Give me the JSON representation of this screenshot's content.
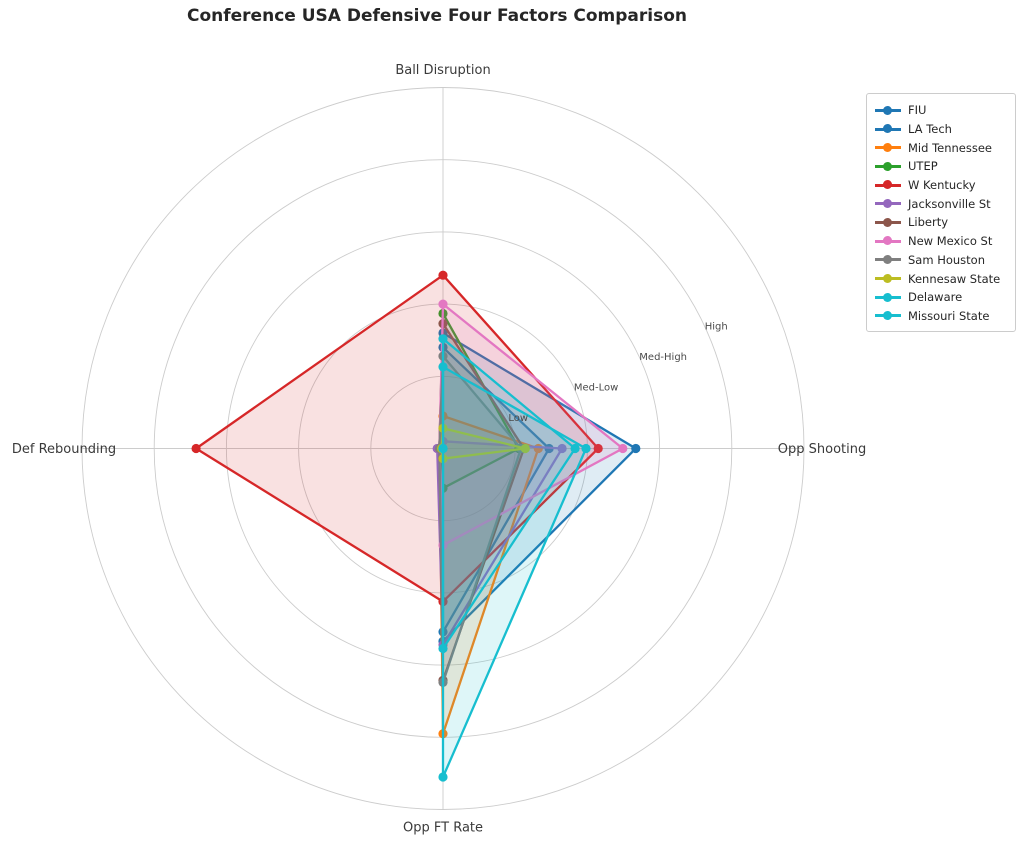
{
  "title": "Conference USA Defensive Four Factors Comparison",
  "chart_data": {
    "type": "radar",
    "axes": [
      "Ball Disruption",
      "Opp Shooting",
      "Opp FT Rate",
      "Def Rebounding"
    ],
    "axis_angles_deg": [
      90,
      0,
      -90,
      180
    ],
    "scale": {
      "min": 0,
      "max": 5,
      "tick_values": [
        1,
        2,
        3,
        4
      ],
      "tick_labels": [
        "Low",
        "Med-Low",
        "Med-High",
        "High"
      ],
      "tick_label_angle_deg": 25
    },
    "grid": true,
    "legend_position": "upper right",
    "series": [
      {
        "name": "FIU",
        "color": "#1f77b4",
        "values": [
          1.6,
          2.67,
          2.67,
          0.05
        ]
      },
      {
        "name": "LA Tech",
        "color": "#1f77b4",
        "values": [
          1.4,
          1.47,
          2.54,
          0.05
        ]
      },
      {
        "name": "Mid Tennessee",
        "color": "#ff7f0e",
        "values": [
          0.45,
          1.32,
          3.95,
          0.05
        ]
      },
      {
        "name": "UTEP",
        "color": "#2ca02c",
        "values": [
          1.87,
          1.05,
          0.55,
          0.05
        ]
      },
      {
        "name": "W Kentucky",
        "color": "#d62728",
        "values": [
          2.4,
          2.15,
          2.12,
          3.42
        ]
      },
      {
        "name": "Jacksonville St",
        "color": "#9467bd",
        "values": [
          0.1,
          1.65,
          2.72,
          0.08
        ]
      },
      {
        "name": "Liberty",
        "color": "#8c564b",
        "values": [
          1.73,
          1.12,
          3.21,
          0.05
        ]
      },
      {
        "name": "New Mexico St",
        "color": "#e377c2",
        "values": [
          2.0,
          2.49,
          1.34,
          0.05
        ]
      },
      {
        "name": "Sam Houston",
        "color": "#7f7f7f",
        "values": [
          1.28,
          1.08,
          3.24,
          0.05
        ]
      },
      {
        "name": "Kennesaw State",
        "color": "#bcbd22",
        "values": [
          0.28,
          1.14,
          0.14,
          0.02
        ]
      },
      {
        "name": "Delaware",
        "color": "#17becf",
        "values": [
          1.52,
          1.83,
          2.77,
          0.0
        ]
      },
      {
        "name": "Missouri State",
        "color": "#17becf",
        "values": [
          1.13,
          1.98,
          4.55,
          0.0
        ]
      }
    ]
  }
}
